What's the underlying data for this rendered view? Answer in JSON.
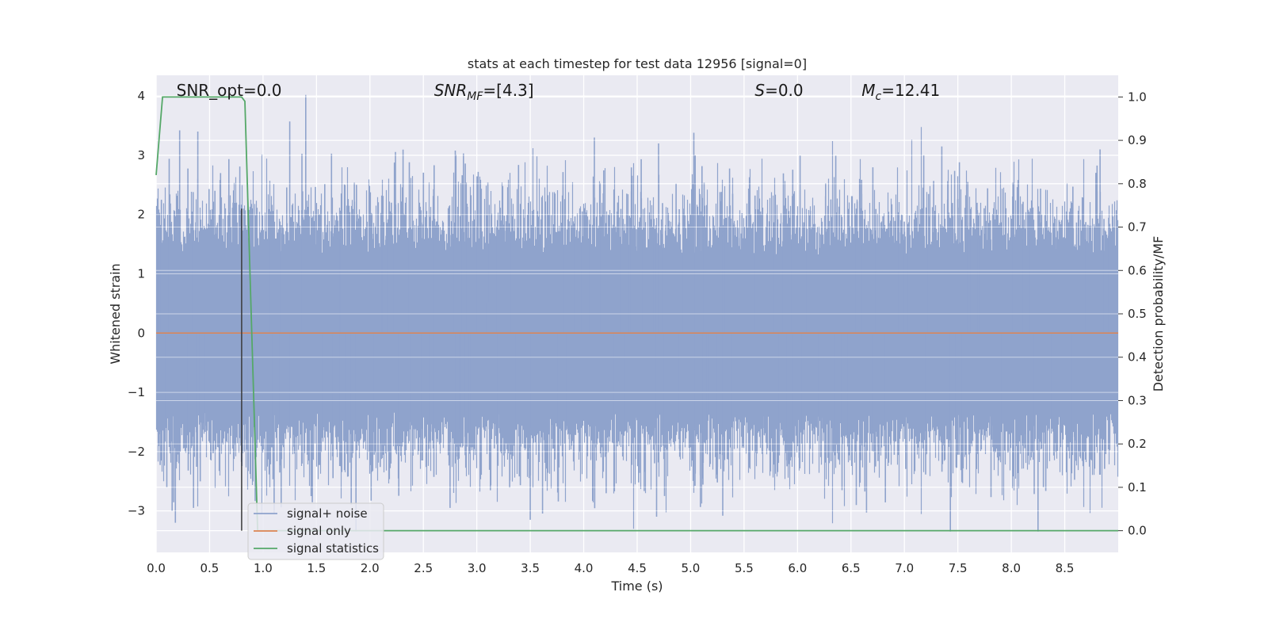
{
  "chart_data": {
    "type": "line",
    "title": "stats at each timestep for test data 12956 [signal=0]",
    "xlabel": "Time (s)",
    "ylabel": "Whitened strain",
    "y2label": "Detection probability/MF",
    "xlim": [
      0.0,
      9.0
    ],
    "ylim": [
      -3.7,
      4.35
    ],
    "y2lim": [
      -0.05,
      1.05
    ],
    "xticks": [
      "0.0",
      "0.5",
      "1.0",
      "1.5",
      "2.0",
      "2.5",
      "3.0",
      "3.5",
      "4.0",
      "4.5",
      "5.0",
      "5.5",
      "6.0",
      "6.5",
      "7.0",
      "7.5",
      "8.0",
      "8.5"
    ],
    "xtick_values": [
      0.0,
      0.5,
      1.0,
      1.5,
      2.0,
      2.5,
      3.0,
      3.5,
      4.0,
      4.5,
      5.0,
      5.5,
      6.0,
      6.5,
      7.0,
      7.5,
      8.0,
      8.5
    ],
    "yticks": [
      "−3",
      "−2",
      "−1",
      "0",
      "1",
      "2",
      "3",
      "4"
    ],
    "ytick_values": [
      -3,
      -2,
      -1,
      0,
      1,
      2,
      3,
      4
    ],
    "y2ticks": [
      "0.0",
      "0.1",
      "0.2",
      "0.3",
      "0.4",
      "0.5",
      "0.6",
      "0.7",
      "0.8",
      "0.9",
      "1.0"
    ],
    "y2tick_values": [
      0.0,
      0.1,
      0.2,
      0.3,
      0.4,
      0.5,
      0.6,
      0.7,
      0.8,
      0.9,
      1.0
    ],
    "grid": true,
    "legend_position": "bottom-left",
    "annotations": [
      {
        "label": "SNR_opt=0.0",
        "x": 0.19
      },
      {
        "label": "SNR",
        "sub": "MF",
        "rest": "=[4.3]",
        "x": 2.6,
        "italic": true
      },
      {
        "label": "S",
        "rest": "=0.0",
        "x": 5.6,
        "italic": true
      },
      {
        "label": "M",
        "sub": "c",
        "rest": "=12.41",
        "x": 6.6,
        "italic": true
      }
    ],
    "marker_line_x": 0.8,
    "series": [
      {
        "name": "signal+ noise",
        "color": "#8fa3cc",
        "kind": "noise",
        "sample_rate_hz": 2048,
        "typical_amplitude": 1.2,
        "peaks": [
          {
            "x": 0.05,
            "y": 2.25
          },
          {
            "x": 0.22,
            "y": 3.42
          },
          {
            "x": 0.39,
            "y": 3.4
          },
          {
            "x": 0.55,
            "y": 2.4
          },
          {
            "x": 0.72,
            "y": 2.2
          },
          {
            "x": 0.82,
            "y": 2.1
          },
          {
            "x": 1.25,
            "y": 3.57
          },
          {
            "x": 1.4,
            "y": 4.02
          },
          {
            "x": 2.2,
            "y": 2.2
          },
          {
            "x": 4.1,
            "y": 3.3
          },
          {
            "x": 4.7,
            "y": 3.2
          },
          {
            "x": 5.03,
            "y": 3.38
          },
          {
            "x": 6.55,
            "y": 2.1
          },
          {
            "x": 7.35,
            "y": 3.15
          },
          {
            "x": 8.83,
            "y": 3.1
          },
          {
            "x": 0.1,
            "y": -2.6
          },
          {
            "x": 0.15,
            "y": -3.0
          },
          {
            "x": 0.18,
            "y": -3.2
          },
          {
            "x": 0.35,
            "y": -2.95
          },
          {
            "x": 1.87,
            "y": -3.35
          },
          {
            "x": 2.75,
            "y": -2.95
          },
          {
            "x": 3.5,
            "y": -3.15
          },
          {
            "x": 6.55,
            "y": -2.9
          },
          {
            "x": 7.43,
            "y": -3.35
          },
          {
            "x": 8.25,
            "y": -3.35
          },
          {
            "x": 8.3,
            "y": -2.6
          }
        ]
      },
      {
        "name": "signal only",
        "color": "#dd8452",
        "kind": "flat",
        "y": 0.0
      },
      {
        "name": "signal statistics",
        "color": "#55a868",
        "axis": "right",
        "kind": "line",
        "x": [
          0.0,
          0.06,
          0.1,
          0.3,
          0.6,
          0.8,
          0.83,
          0.95,
          9.0
        ],
        "y": [
          0.82,
          1.0,
          1.0,
          1.0,
          1.0,
          1.0,
          0.99,
          0.0,
          0.0
        ]
      }
    ]
  }
}
